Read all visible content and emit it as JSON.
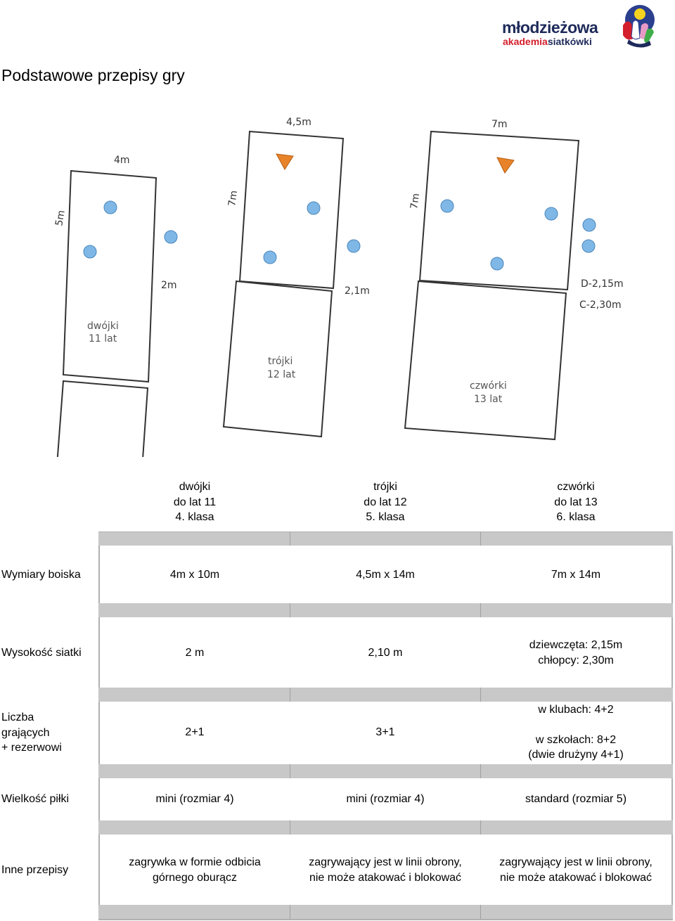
{
  "logo": {
    "line1": "młodzieżowa",
    "line2a": "akademia",
    "line2b": "siatkówki"
  },
  "page_title": "Podstawowe przepisy gry",
  "diagram": {
    "courts": [
      {
        "width_label": "4m",
        "length_label": "5m",
        "net_label": "2m",
        "name": "dwójki",
        "age": "11 lat"
      },
      {
        "width_label": "4,5m",
        "length_label": "7m",
        "net_label": "2,1m",
        "name": "trójki",
        "age": "12 lat"
      },
      {
        "width_label": "7m",
        "length_label": "7m",
        "net_label_1": "D-2,15m",
        "net_label_2": "C-2,30m",
        "name": "czwórki",
        "age": "13 lat"
      }
    ],
    "player_color": "#7fb8e6",
    "setter_color": "#e8832a"
  },
  "columns": [
    {
      "line1": "dwójki",
      "line2": "do lat 11",
      "line3": "4. klasa"
    },
    {
      "line1": "trójki",
      "line2": "do lat 12",
      "line3": "5. klasa"
    },
    {
      "line1": "czwórki",
      "line2": "do lat 13",
      "line3": "6. klasa"
    }
  ],
  "rows": [
    {
      "label": [
        "Wymiary boiska"
      ],
      "cells": [
        [
          "4m x 10m"
        ],
        [
          "4,5m x 14m"
        ],
        [
          "7m x 14m"
        ]
      ]
    },
    {
      "label": [
        "Wysokość siatki"
      ],
      "cells": [
        [
          "2 m"
        ],
        [
          "2,10 m"
        ],
        [
          "dziewczęta: 2,15m",
          "chłopcy: 2,30m"
        ]
      ]
    },
    {
      "label": [
        "Liczba",
        "grających",
        "+ rezerwowi"
      ],
      "cells": [
        [
          "2+1"
        ],
        [
          "3+1"
        ],
        [
          "w klubach: 4+2",
          "w szkołach: 8+2",
          "(dwie drużyny 4+1)"
        ]
      ]
    },
    {
      "label": [
        "Wielkość piłki"
      ],
      "cells": [
        [
          "mini (rozmiar 4)"
        ],
        [
          "mini (rozmiar 4)"
        ],
        [
          "standard (rozmiar 5)"
        ]
      ]
    },
    {
      "label": [
        "Inne przepisy"
      ],
      "cells": [
        [
          "zagrywka w formie odbicia",
          "górnego oburącz"
        ],
        [
          "zagrywający jest w linii obrony,",
          "nie może atakować i blokować"
        ],
        [
          "zagrywający jest w linii obrony,",
          "nie może atakować i blokować"
        ]
      ]
    }
  ]
}
